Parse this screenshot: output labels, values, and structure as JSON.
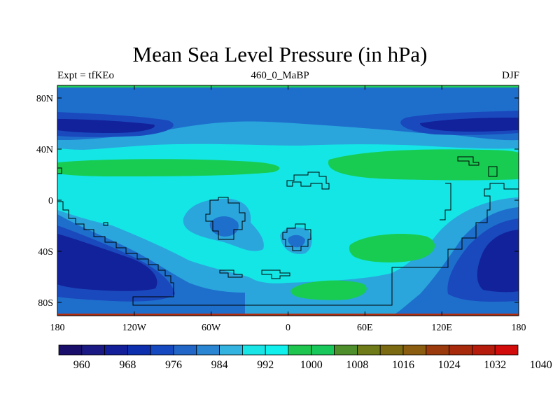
{
  "title": "Mean Sea Level Pressure (in hPa)",
  "subtitle_left": "Expt = tfKEo",
  "subtitle_center": "460_0_MaBP",
  "subtitle_right": "DJF",
  "lat_ticks": [
    "80N",
    "40N",
    "0",
    "40S",
    "80S"
  ],
  "lon_ticks": [
    "180",
    "120W",
    "60W",
    "0",
    "60E",
    "120E",
    "180"
  ],
  "colorbar": {
    "colors": [
      "#1a0e6b",
      "#1b1a85",
      "#121f99",
      "#0e2fad",
      "#1649bf",
      "#2266c8",
      "#2a86d2",
      "#33b3df",
      "#19e4e6",
      "#12f0ee",
      "#1ec64f",
      "#18c85a",
      "#4f8f2b",
      "#6f7b18",
      "#7c6a12",
      "#8b5d10",
      "#9a3a0d",
      "#a72a0c",
      "#b51c0b",
      "#d20c0a"
    ],
    "labels": [
      "960",
      "968",
      "976",
      "984",
      "992",
      "1000",
      "1008",
      "1016",
      "1024",
      "1032",
      "1040"
    ]
  },
  "palette": {
    "band_3": "#12229a",
    "band_4": "#1a49bd",
    "band_5": "#1e6fcc",
    "band_6": "#2aa6dc",
    "band_7": "#14e6e6",
    "band_8": "#18cc52",
    "top_edge": "#1fcc5a",
    "bottom_edge": "#b22c10"
  }
}
